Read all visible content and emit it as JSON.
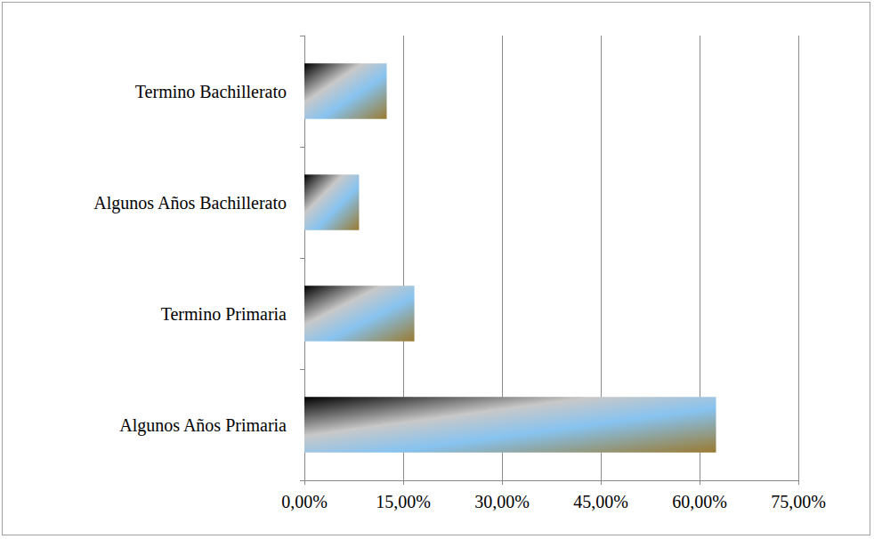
{
  "chart_data": {
    "type": "bar",
    "orientation": "horizontal",
    "categories": [
      "Algunos Años Primaria",
      "Termino Primaria",
      "Algunos Años Bachillerato",
      "Termino Bachillerato"
    ],
    "values": [
      62.5,
      16.7,
      8.3,
      12.5
    ],
    "color": "#87c3f0",
    "xlim": [
      0,
      75
    ],
    "xticks": [
      {
        "value": 0,
        "label": "0,00%"
      },
      {
        "value": 15,
        "label": "15,00%"
      },
      {
        "value": 30,
        "label": "30,00%"
      },
      {
        "value": 45,
        "label": "45,00%"
      },
      {
        "value": 60,
        "label": "60,00%"
      },
      {
        "value": 75,
        "label": "75,00%"
      }
    ],
    "grid": true
  }
}
